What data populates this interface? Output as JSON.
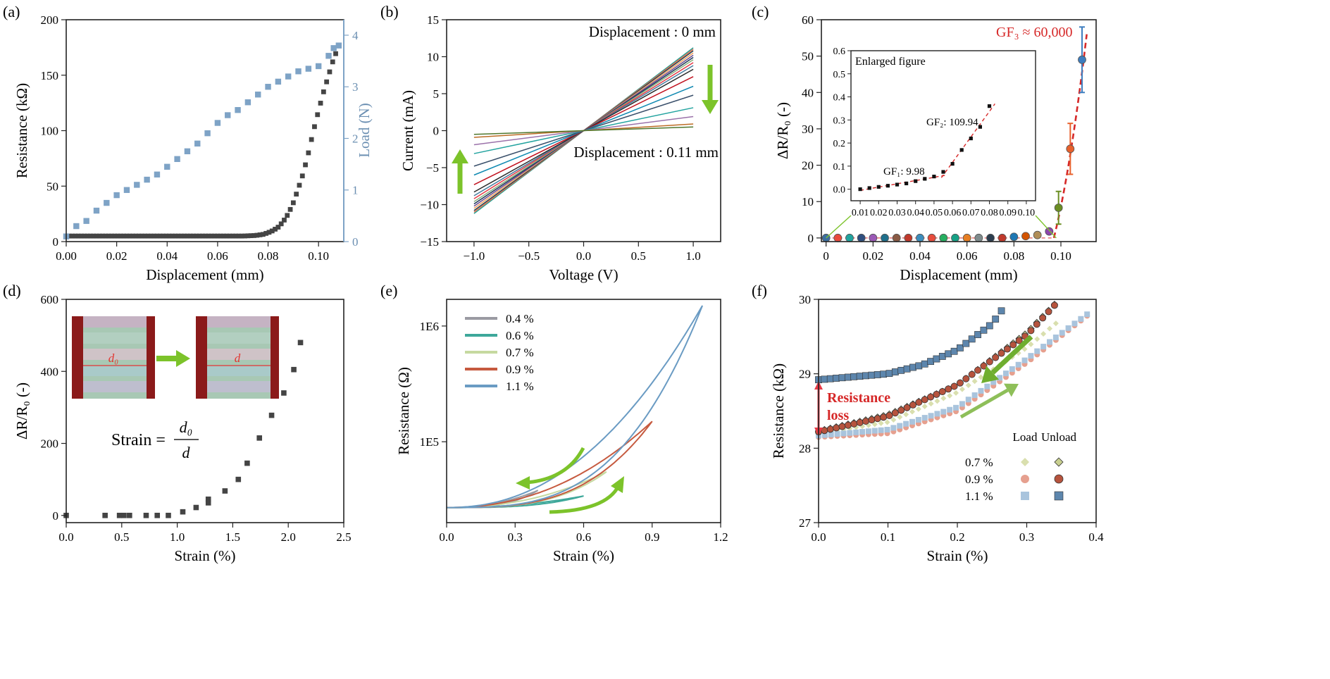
{
  "figure": {
    "panel_letters": [
      "(a)",
      "(b)",
      "(c)",
      "(d)",
      "(e)",
      "(f)"
    ]
  },
  "chart_data": [
    {
      "id": "a",
      "type": "scatter",
      "xlabel": "Displacement (mm)",
      "ylabel": "Resistance (kΩ)",
      "y2label": "Load (N)",
      "xlim": [
        0,
        0.11
      ],
      "ylim": [
        0,
        200
      ],
      "y2lim": [
        0,
        4.3
      ],
      "xticks": [
        "0.00",
        "0.02",
        "0.04",
        "0.06",
        "0.08",
        "0.10"
      ],
      "yticks": [
        "0",
        "50",
        "100",
        "150",
        "200"
      ],
      "y2ticks": [
        "0",
        "1",
        "2",
        "3",
        "4"
      ],
      "series": [
        {
          "axis": "left",
          "color": "#444444",
          "points": [
            [
              0.0,
              5
            ],
            [
              0.01,
              5
            ],
            [
              0.02,
              5
            ],
            [
              0.03,
              5
            ],
            [
              0.04,
              5
            ],
            [
              0.05,
              5
            ],
            [
              0.06,
              5
            ],
            [
              0.07,
              5
            ],
            [
              0.075,
              5.5
            ],
            [
              0.078,
              6.5
            ],
            [
              0.08,
              8
            ],
            [
              0.082,
              10
            ],
            [
              0.084,
              13
            ],
            [
              0.086,
              18
            ],
            [
              0.088,
              25
            ],
            [
              0.09,
              35
            ],
            [
              0.092,
              48
            ],
            [
              0.094,
              62
            ],
            [
              0.096,
              80
            ],
            [
              0.098,
              100
            ],
            [
              0.1,
              118
            ],
            [
              0.102,
              135
            ],
            [
              0.104,
              150
            ],
            [
              0.106,
              165
            ],
            [
              0.108,
              176
            ]
          ]
        },
        {
          "axis": "right",
          "color": "#7ea3c6",
          "points": [
            [
              0.0,
              0.1
            ],
            [
              0.004,
              0.3
            ],
            [
              0.008,
              0.4
            ],
            [
              0.012,
              0.6
            ],
            [
              0.016,
              0.75
            ],
            [
              0.02,
              0.9
            ],
            [
              0.024,
              1.0
            ],
            [
              0.028,
              1.1
            ],
            [
              0.032,
              1.2
            ],
            [
              0.036,
              1.3
            ],
            [
              0.04,
              1.45
            ],
            [
              0.044,
              1.6
            ],
            [
              0.048,
              1.75
            ],
            [
              0.052,
              1.9
            ],
            [
              0.056,
              2.1
            ],
            [
              0.06,
              2.3
            ],
            [
              0.064,
              2.45
            ],
            [
              0.068,
              2.55
            ],
            [
              0.072,
              2.7
            ],
            [
              0.076,
              2.85
            ],
            [
              0.08,
              3.0
            ],
            [
              0.084,
              3.1
            ],
            [
              0.088,
              3.2
            ],
            [
              0.092,
              3.3
            ],
            [
              0.096,
              3.35
            ],
            [
              0.1,
              3.4
            ],
            [
              0.104,
              3.6
            ],
            [
              0.106,
              3.75
            ],
            [
              0.108,
              3.8
            ]
          ]
        }
      ]
    },
    {
      "id": "b",
      "type": "line",
      "xlabel": "Voltage (V)",
      "ylabel": "Current (mA)",
      "xlim": [
        -1.25,
        1.25
      ],
      "ylim": [
        -15,
        15
      ],
      "xticks": [
        "−1.0",
        "−0.5",
        "0.0",
        "0.5",
        "1.0"
      ],
      "yticks": [
        "−15",
        "−10",
        "−5",
        "0",
        "5",
        "10",
        "15"
      ],
      "annotations": [
        "Displacement : 0 mm",
        "Displacement : 0.11 mm"
      ],
      "slopes": [
        11.2,
        11.0,
        10.8,
        10.5,
        10.2,
        9.9,
        9.6,
        9.2,
        8.8,
        8.3,
        7.3,
        6.0,
        4.8,
        3.1,
        1.9,
        0.9,
        0.5
      ],
      "colors": [
        "#2a9d8f",
        "#e76f51",
        "#264653",
        "#f4a261",
        "#6a4c93",
        "#1d3557",
        "#8ab17d",
        "#e63946",
        "#457b9d",
        "#2a2a2a",
        "#c1121f",
        "#118ab2",
        "#3a506b",
        "#22a39f",
        "#9b72aa",
        "#bc6c25",
        "#4f772d"
      ]
    },
    {
      "id": "c",
      "type": "scatter",
      "xlabel": "Displacement (mm)",
      "ylabel": "ΔR/R₀ (-)",
      "xlim": [
        -0.002,
        0.115
      ],
      "ylim": [
        -1,
        60
      ],
      "xticks": [
        "0",
        "0.02",
        "0.04",
        "0.06",
        "0.08",
        "0.10"
      ],
      "yticks": [
        "0",
        "10",
        "20",
        "30",
        "40",
        "50",
        "60"
      ],
      "annotation": "GF₃ ≈ 60,000",
      "x": [
        0,
        0.005,
        0.01,
        0.015,
        0.02,
        0.025,
        0.03,
        0.035,
        0.04,
        0.045,
        0.05,
        0.055,
        0.06,
        0.065,
        0.07,
        0.075,
        0.08,
        0.085,
        0.09,
        0.095,
        0.099,
        0.104,
        0.109
      ],
      "y": [
        0,
        0,
        0,
        0,
        0,
        0,
        0,
        0,
        0,
        0,
        0,
        0,
        0,
        0,
        0,
        0,
        0.3,
        0.5,
        0.8,
        1.8,
        8.3,
        24.5,
        49
      ],
      "err": [
        0,
        0,
        0,
        0,
        0,
        0,
        0,
        0,
        0,
        0,
        0,
        0,
        0,
        0,
        0,
        0,
        0,
        0,
        0,
        0.5,
        4.5,
        7,
        9
      ],
      "colors": [
        "#3b6fa0",
        "#e94b3c",
        "#20a39e",
        "#2f4f7f",
        "#9b59b6",
        "#1f6f8b",
        "#8a5a44",
        "#c0392b",
        "#3c8dbc",
        "#e74c3c",
        "#27ae60",
        "#16a085",
        "#e67e22",
        "#7f8c8d",
        "#2c3e50",
        "#c0392b",
        "#1f78b4",
        "#d35400",
        "#b08d57",
        "#8e44ad",
        "#6b8e23",
        "#e8612c",
        "#3d7dbf"
      ],
      "inset": {
        "title": "Enlarged figure",
        "xlim": [
          0.005,
          0.105
        ],
        "ylim": [
          -0.05,
          0.6
        ],
        "xticks": [
          "0.01",
          "0.02",
          "0.03",
          "0.04",
          "0.05",
          "0.06",
          "0.07",
          "0.08",
          "0.09",
          "0.10"
        ],
        "yticks": [
          "0.0",
          "0.1",
          "0.2",
          "0.3",
          "0.4",
          "0.5",
          "0.6"
        ],
        "labels": [
          "GF₁: 9.98",
          "GF₂: 109.94"
        ],
        "x": [
          0.01,
          0.015,
          0.02,
          0.025,
          0.03,
          0.035,
          0.04,
          0.045,
          0.05,
          0.055,
          0.06,
          0.065,
          0.07,
          0.075,
          0.08
        ],
        "y": [
          0.0,
          0.005,
          0.01,
          0.015,
          0.02,
          0.025,
          0.035,
          0.045,
          0.055,
          0.075,
          0.11,
          0.17,
          0.22,
          0.27,
          0.36
        ]
      }
    },
    {
      "id": "d",
      "type": "scatter",
      "xlabel": "Strain (%)",
      "ylabel": "ΔR/R₀ (-)",
      "xlim": [
        0,
        2.5
      ],
      "ylim": [
        -20,
        600
      ],
      "xticks": [
        "0.0",
        "0.5",
        "1.0",
        "1.5",
        "2.0",
        "2.5"
      ],
      "yticks": [
        "0",
        "200",
        "400",
        "600"
      ],
      "inset_labels": [
        "d₀",
        "d"
      ],
      "formula": [
        "Strain =",
        "d₀",
        "d"
      ],
      "x": [
        0,
        0.35,
        0.48,
        0.52,
        0.57,
        0.72,
        0.82,
        0.92,
        1.05,
        1.17,
        1.28,
        1.28,
        1.43,
        1.55,
        1.63,
        1.74,
        1.85,
        1.96,
        2.05,
        2.11
      ],
      "y": [
        0,
        0,
        0,
        0,
        0,
        0,
        0,
        0,
        10,
        22,
        35,
        45,
        68,
        100,
        145,
        215,
        278,
        340,
        405,
        480
      ]
    },
    {
      "id": "e",
      "type": "line",
      "xlabel": "Strain (%)",
      "ylabel": "Resistance (Ω)",
      "xlim": [
        0,
        1.2
      ],
      "ylim": [
        20000,
        1700000
      ],
      "yscale": "log",
      "xticks": [
        "0.0",
        "0.3",
        "0.6",
        "0.9",
        "1.2"
      ],
      "yticks": [
        "1E5",
        "1E6"
      ],
      "series": [
        {
          "name": "0.4 %",
          "color": "#9a9aa2",
          "peak": 0.4,
          "rmax": 38000
        },
        {
          "name": "0.6 %",
          "color": "#3ea89a",
          "peak": 0.6,
          "rmax": 34000
        },
        {
          "name": "0.7 %",
          "color": "#c6d9a0",
          "peak": 0.7,
          "rmax": 55000
        },
        {
          "name": "0.9 %",
          "color": "#c65a3f",
          "peak": 0.9,
          "rmax": 150000
        },
        {
          "name": "1.1 %",
          "color": "#6a9bc3",
          "peak": 1.12,
          "rmax": 1500000
        }
      ]
    },
    {
      "id": "f",
      "type": "scatter",
      "xlabel": "Strain (%)",
      "ylabel": "Resistance (kΩ)",
      "xlim": [
        0,
        0.4
      ],
      "ylim": [
        27,
        30
      ],
      "xticks": [
        "0.0",
        "0.1",
        "0.2",
        "0.3",
        "0.4"
      ],
      "yticks": [
        "27",
        "28",
        "29",
        "30"
      ],
      "annotation": [
        "Resistance",
        "loss"
      ],
      "legend_headers": [
        "Load",
        "Unload"
      ],
      "series": [
        {
          "name": "0.7 %",
          "color_load": "#d9dfae",
          "color_unload": "#c8cf8f",
          "marker": "diamond",
          "load": [
            [
              0.0,
              28.2
            ],
            [
              0.1,
              28.35
            ],
            [
              0.2,
              28.75
            ],
            [
              0.3,
              29.35
            ],
            [
              0.345,
              29.7
            ]
          ],
          "unload": [
            [
              0.0,
              28.23
            ],
            [
              0.1,
              28.45
            ],
            [
              0.2,
              28.85
            ],
            [
              0.3,
              29.55
            ],
            [
              0.345,
              29.98
            ]
          ]
        },
        {
          "name": "0.9 %",
          "color_load": "#e6a08f",
          "color_unload": "#b6533d",
          "marker": "circle",
          "load": [
            [
              0.0,
              28.15
            ],
            [
              0.1,
              28.2
            ],
            [
              0.2,
              28.5
            ],
            [
              0.3,
              29.15
            ],
            [
              0.39,
              29.8
            ]
          ],
          "unload": [
            [
              0.0,
              28.22
            ],
            [
              0.1,
              28.43
            ],
            [
              0.2,
              28.85
            ],
            [
              0.3,
              29.52
            ],
            [
              0.345,
              29.97
            ]
          ]
        },
        {
          "name": "1.1 %",
          "color_load": "#a9c4dd",
          "color_unload": "#5d86ad",
          "marker": "square",
          "load": [
            [
              0.0,
              28.17
            ],
            [
              0.1,
              28.25
            ],
            [
              0.2,
              28.55
            ],
            [
              0.3,
              29.2
            ],
            [
              0.39,
              29.82
            ]
          ],
          "unload": [
            [
              0.0,
              28.92
            ],
            [
              0.1,
              29.0
            ],
            [
              0.15,
              29.12
            ],
            [
              0.2,
              29.32
            ],
            [
              0.25,
              29.67
            ],
            [
              0.27,
              29.93
            ]
          ]
        }
      ]
    }
  ]
}
